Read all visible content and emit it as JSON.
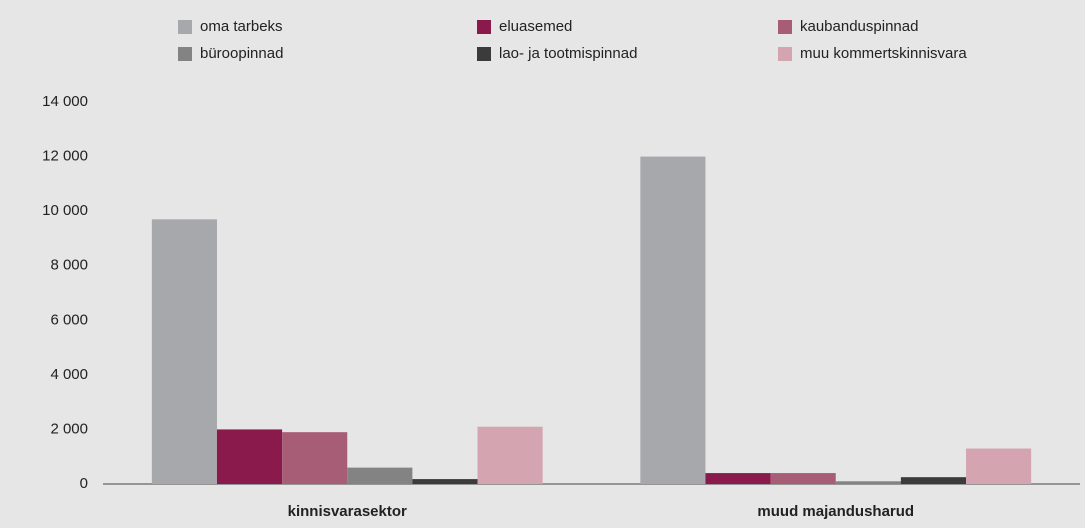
{
  "chart_data": {
    "type": "bar",
    "categories": [
      "kinnisvarasektor",
      "muud majandusharud"
    ],
    "series": [
      {
        "name": "oma tarbeks",
        "color": "#a7a8ab",
        "values": [
          9700,
          12000
        ]
      },
      {
        "name": "eluasemed",
        "color": "#8a1a4b",
        "values": [
          2000,
          400
        ]
      },
      {
        "name": "kaubandus­pinnad",
        "color": "#a85d76",
        "values": [
          1900,
          400
        ]
      },
      {
        "name": "büroopinnad",
        "color": "#838384",
        "values": [
          600,
          100
        ]
      },
      {
        "name": "lao- ja tootmispinnad",
        "color": "#3b3b3b",
        "values": [
          180,
          250
        ]
      },
      {
        "name": "muu kommertskinnisvara",
        "color": "#d4a4b1",
        "values": [
          2100,
          1300
        ]
      }
    ],
    "ylim": [
      0,
      14000
    ],
    "yticks": [
      0,
      {
        "value": 2000,
        "label": "2 000"
      },
      {
        "value": 4000,
        "label": "4 000"
      },
      {
        "value": 6000,
        "label": "6 000"
      },
      {
        "value": 8000,
        "label": "8 000"
      },
      {
        "value": 10000,
        "label": "10 000"
      },
      {
        "value": 12000,
        "label": "12 000"
      },
      {
        "value": 14000,
        "label": "14 000"
      }
    ],
    "grid": false,
    "legend": "top"
  }
}
